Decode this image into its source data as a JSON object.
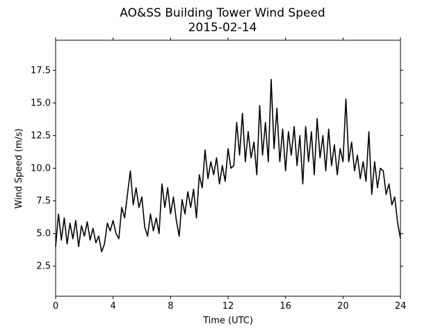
{
  "chart_data": {
    "type": "line",
    "title": "AO&SS Building Tower Wind Speed",
    "subtitle": "2015-02-14",
    "x_label": "Time (UTC)",
    "y_label": "Wind Speed (m/s)",
    "x": [
      0,
      0.2,
      0.4,
      0.6,
      0.8,
      1,
      1.2,
      1.4,
      1.6,
      1.8,
      2,
      2.2,
      2.4,
      2.6,
      2.8,
      3,
      3.2,
      3.4,
      3.6,
      3.8,
      4,
      4.2,
      4.4,
      4.6,
      4.8,
      5,
      5.2,
      5.4,
      5.6,
      5.8,
      6,
      6.2,
      6.4,
      6.6,
      6.8,
      7,
      7.2,
      7.4,
      7.6,
      7.8,
      8,
      8.2,
      8.4,
      8.6,
      8.8,
      9,
      9.2,
      9.4,
      9.6,
      9.8,
      10,
      10.2,
      10.4,
      10.6,
      10.8,
      11,
      11.2,
      11.4,
      11.6,
      11.8,
      12,
      12.2,
      12.4,
      12.6,
      12.8,
      13,
      13.2,
      13.4,
      13.6,
      13.8,
      14,
      14.2,
      14.4,
      14.6,
      14.8,
      15,
      15.2,
      15.4,
      15.6,
      15.8,
      16,
      16.2,
      16.4,
      16.6,
      16.8,
      17,
      17.2,
      17.4,
      17.6,
      17.8,
      18,
      18.2,
      18.4,
      18.6,
      18.8,
      19,
      19.2,
      19.4,
      19.6,
      19.8,
      20,
      20.2,
      20.4,
      20.6,
      20.8,
      21,
      21.2,
      21.4,
      21.6,
      21.8,
      22,
      22.2,
      22.4,
      22.6,
      22.8,
      23,
      23.2,
      23.4,
      23.6,
      23.8,
      24
    ],
    "series": [
      {
        "name": "Wind Speed",
        "color": "#000000",
        "values": [
          4.0,
          6.5,
          4.5,
          6.2,
          4.2,
          5.8,
          4.6,
          6.0,
          4.0,
          5.6,
          4.8,
          5.9,
          4.5,
          5.4,
          4.3,
          4.8,
          3.6,
          4.2,
          5.8,
          5.2,
          6.0,
          5.0,
          4.6,
          7.0,
          6.2,
          8.0,
          9.8,
          7.2,
          8.5,
          7.0,
          7.8,
          5.5,
          4.8,
          6.5,
          5.2,
          6.2,
          5.0,
          8.8,
          7.0,
          8.5,
          6.5,
          7.8,
          6.0,
          4.8,
          7.6,
          6.5,
          8.2,
          7.0,
          8.4,
          6.2,
          9.5,
          8.5,
          11.4,
          9.2,
          10.5,
          9.5,
          10.8,
          8.8,
          10.2,
          9.0,
          11.5,
          10.0,
          10.2,
          13.5,
          11.0,
          14.2,
          10.5,
          12.8,
          10.8,
          12.0,
          9.5,
          14.8,
          11.0,
          13.5,
          10.5,
          16.8,
          11.5,
          14.6,
          10.5,
          13.0,
          9.8,
          12.8,
          11.0,
          13.2,
          10.2,
          12.5,
          8.8,
          13.2,
          10.5,
          12.8,
          9.5,
          13.8,
          10.8,
          12.5,
          9.8,
          13.0,
          10.2,
          11.8,
          9.5,
          11.5,
          10.5,
          15.3,
          10.5,
          12.0,
          9.8,
          11.0,
          9.2,
          10.5,
          9.0,
          12.8,
          8.0,
          10.5,
          8.5,
          10.0,
          9.8,
          8.0,
          8.8,
          7.2,
          7.8,
          5.8,
          4.6
        ]
      }
    ],
    "xlim": [
      0,
      24
    ],
    "xticks": [
      0,
      4,
      8,
      12,
      16,
      20,
      24
    ],
    "ylim": [
      0.2,
      19.8
    ],
    "yticks": [
      2.5,
      {
        "value": 5,
        "label": "5.0"
      },
      7.5,
      {
        "value": 10,
        "label": "10.0"
      },
      12.5,
      {
        "value": 15,
        "label": "15.0"
      },
      17.5
    ],
    "grid": false
  }
}
